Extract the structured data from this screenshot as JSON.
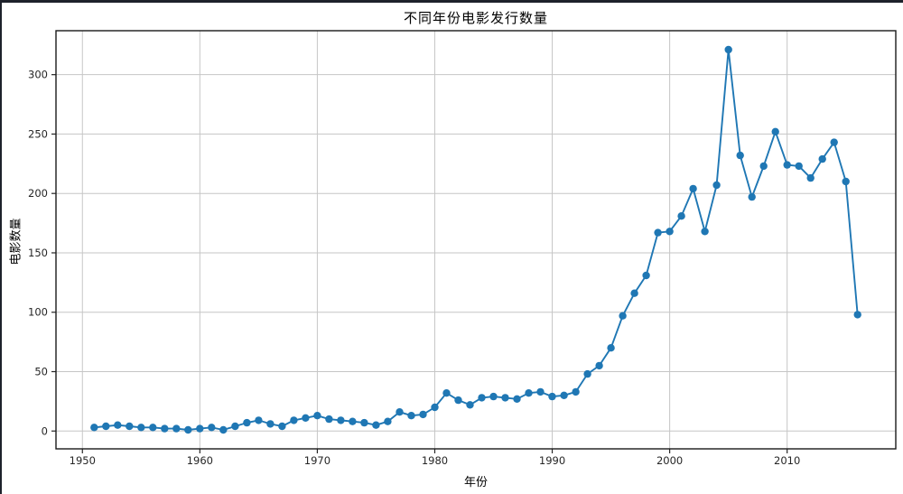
{
  "window": {
    "background_color": "#ffffff",
    "top_border_color": "#1e222b",
    "left_border_color": "#1e222b"
  },
  "chart_data": {
    "type": "line",
    "title": "不同年份电影发行数量",
    "xlabel": "年份",
    "ylabel": "电影数量",
    "series_name": "电影发行数量",
    "x": [
      1951,
      1952,
      1953,
      1954,
      1955,
      1956,
      1957,
      1958,
      1959,
      1960,
      1961,
      1962,
      1963,
      1964,
      1965,
      1966,
      1967,
      1968,
      1969,
      1970,
      1971,
      1972,
      1973,
      1974,
      1975,
      1976,
      1977,
      1978,
      1979,
      1980,
      1981,
      1982,
      1983,
      1984,
      1985,
      1986,
      1987,
      1988,
      1989,
      1990,
      1991,
      1992,
      1993,
      1994,
      1995,
      1996,
      1997,
      1998,
      1999,
      2000,
      2001,
      2002,
      2003,
      2004,
      2005,
      2006,
      2007,
      2008,
      2009,
      2010,
      2011,
      2012,
      2013,
      2014,
      2015,
      2016
    ],
    "y": [
      3,
      4,
      5,
      4,
      3,
      3,
      2,
      2,
      1,
      2,
      3,
      1,
      4,
      7,
      9,
      6,
      4,
      9,
      11,
      13,
      10,
      9,
      8,
      7,
      5,
      8,
      16,
      13,
      14,
      20,
      32,
      26,
      22,
      28,
      29,
      28,
      27,
      32,
      33,
      29,
      30,
      33,
      48,
      55,
      70,
      97,
      116,
      131,
      167,
      168,
      181,
      204,
      168,
      207,
      321,
      232,
      197,
      223,
      252,
      224,
      223,
      213,
      229,
      243,
      210,
      98
    ],
    "xticks": [
      1950,
      1960,
      1970,
      1980,
      1990,
      2000,
      2010
    ],
    "yticks": [
      0,
      50,
      100,
      150,
      200,
      250,
      300
    ],
    "xlim": [
      1947.75,
      2019.25
    ],
    "ylim": [
      -15,
      337
    ],
    "grid": true,
    "grid_color": "#c6c6c6",
    "line_color": "#1f77b4",
    "marker": "circle",
    "marker_color": "#1f77b4",
    "legend": "none"
  }
}
